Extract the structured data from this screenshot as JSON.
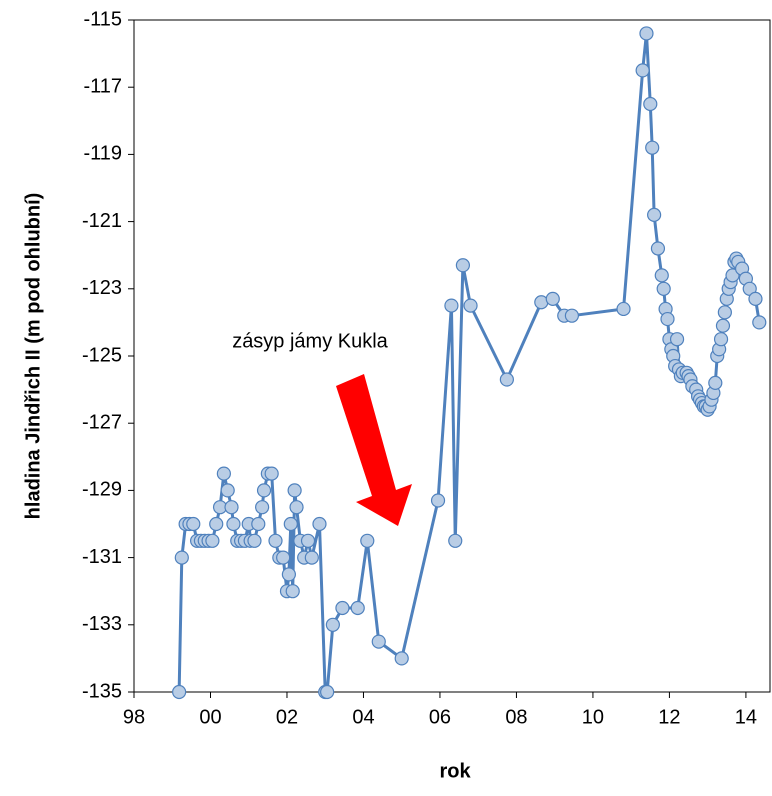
{
  "chart_data": {
    "type": "line",
    "annotation": "zásyp jámy Kukla",
    "x_label": "rok",
    "y_label": "hladina Jindřich II (m pod ohlubní)",
    "xlim": [
      1998,
      2014.63
    ],
    "ylim": [
      -135,
      -115
    ],
    "xticks": [
      {
        "value": 1998,
        "label": "98"
      },
      {
        "value": 2000,
        "label": "00"
      },
      {
        "value": 2002,
        "label": "02"
      },
      {
        "value": 2004,
        "label": "04"
      },
      {
        "value": 2006,
        "label": "06"
      },
      {
        "value": 2008,
        "label": "08"
      },
      {
        "value": 2010,
        "label": "10"
      },
      {
        "value": 2012,
        "label": "12"
      },
      {
        "value": 2014,
        "label": "14"
      }
    ],
    "yticks": [
      -135,
      -133,
      -131,
      -129,
      -127,
      -125,
      -123,
      -121,
      -119,
      -117,
      -115
    ],
    "grid": false,
    "x": [
      1999.18,
      1999.25,
      1999.35,
      1999.45,
      1999.55,
      1999.65,
      1999.75,
      1999.85,
      1999.95,
      2000.05,
      2000.15,
      2000.25,
      2000.35,
      2000.45,
      2000.55,
      2000.6,
      2000.7,
      2000.8,
      2000.9,
      2001.0,
      2001.05,
      2001.15,
      2001.25,
      2001.35,
      2001.4,
      2001.5,
      2001.6,
      2001.7,
      2001.8,
      2001.9,
      2002.0,
      2002.05,
      2002.1,
      2002.15,
      2002.2,
      2002.25,
      2002.35,
      2002.45,
      2002.55,
      2002.65,
      2002.85,
      2003.0,
      2003.05,
      2003.2,
      2003.45,
      2003.85,
      2004.1,
      2004.4,
      2005.0,
      2005.95,
      2006.3,
      2006.4,
      2006.6,
      2006.8,
      2007.75,
      2008.65,
      2008.95,
      2009.25,
      2009.45,
      2010.8,
      2011.3,
      2011.4,
      2011.5,
      2011.55,
      2011.6,
      2011.7,
      2011.8,
      2011.85,
      2011.9,
      2011.95,
      2012.0,
      2012.05,
      2012.1,
      2012.15,
      2012.2,
      2012.25,
      2012.3,
      2012.35,
      2012.45,
      2012.5,
      2012.55,
      2012.6,
      2012.7,
      2012.75,
      2012.8,
      2012.85,
      2012.9,
      2012.95,
      2013.0,
      2013.05,
      2013.1,
      2013.15,
      2013.2,
      2013.25,
      2013.3,
      2013.35,
      2013.4,
      2013.45,
      2013.5,
      2013.55,
      2013.6,
      2013.65,
      2013.7,
      2013.75,
      2013.8,
      2013.9,
      2014.0,
      2014.1,
      2014.25,
      2014.35
    ],
    "series": [
      {
        "color": "#4f81bd",
        "marker_fill": "#b9cde5",
        "values": [
          -135,
          -131,
          -130,
          -130,
          -130,
          -130.5,
          -130.5,
          -130.5,
          -130.5,
          -130.5,
          -130,
          -129.5,
          -128.5,
          -129,
          -129.5,
          -130,
          -130.5,
          -130.5,
          -130.5,
          -130,
          -130.5,
          -130.5,
          -130,
          -129.5,
          -129,
          -128.5,
          -128.5,
          -130.5,
          -131,
          -131,
          -132,
          -131.5,
          -130,
          -132,
          -129,
          -129.5,
          -130.5,
          -131,
          -130.5,
          -131,
          -130,
          -135,
          -135,
          -133,
          -132.5,
          -132.5,
          -130.5,
          -133.5,
          -134,
          -129.3,
          -123.5,
          -130.5,
          -122.3,
          -123.5,
          -125.7,
          -123.4,
          -123.3,
          -123.8,
          -123.8,
          -123.6,
          -116.5,
          -115.4,
          -117.5,
          -118.8,
          -120.8,
          -121.8,
          -122.6,
          -123,
          -123.6,
          -123.9,
          -124.5,
          -124.8,
          -125,
          -125.3,
          -124.5,
          -125.4,
          -125.6,
          -125.5,
          -125.5,
          -125.6,
          -125.7,
          -125.9,
          -126,
          -126.2,
          -126.3,
          -126.4,
          -126.5,
          -126.5,
          -126.6,
          -126.5,
          -126.3,
          -126.1,
          -125.8,
          -125,
          -124.8,
          -124.5,
          -124.1,
          -123.7,
          -123.3,
          -123,
          -122.8,
          -122.6,
          -122.2,
          -122.1,
          -122.2,
          -122.4,
          -122.7,
          -123,
          -123.3,
          -124
        ]
      }
    ]
  }
}
